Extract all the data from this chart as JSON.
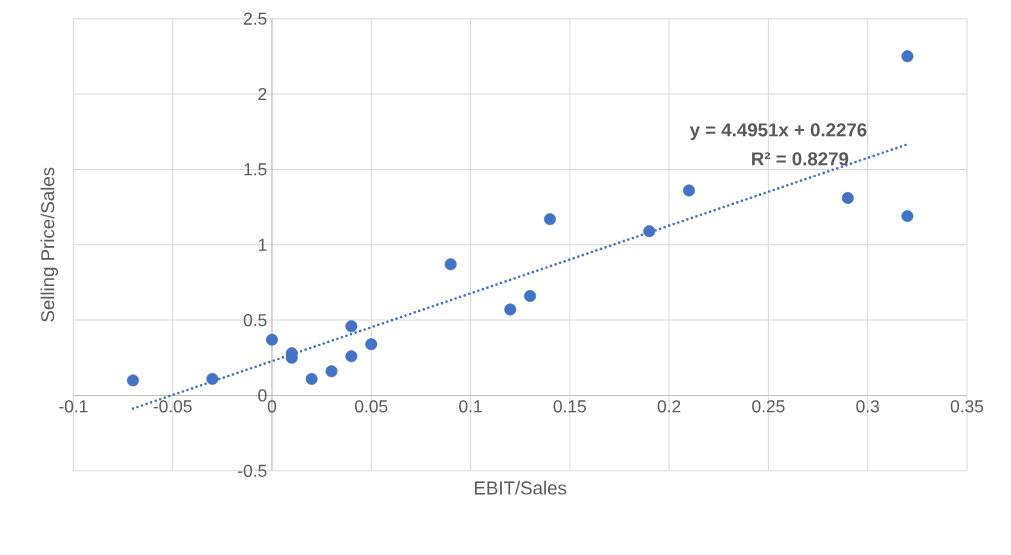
{
  "chart_data": {
    "type": "scatter",
    "xlabel": "EBIT/Sales",
    "ylabel": "Selling Price/Sales",
    "xlim": [
      -0.1,
      0.35
    ],
    "ylim": [
      -0.5,
      2.5
    ],
    "xticks": [
      -0.1,
      -0.05,
      0,
      0.05,
      0.1,
      0.15,
      0.2,
      0.25,
      0.3,
      0.35
    ],
    "yticks": [
      -0.5,
      0,
      0.5,
      1,
      1.5,
      2,
      2.5
    ],
    "grid": true,
    "marker": "circle",
    "series": [
      {
        "color": "#4472c4",
        "x": [
          -0.07,
          -0.03,
          0,
          0.01,
          0.01,
          0.02,
          0.03,
          0.04,
          0.04,
          0.05,
          0.09,
          0.12,
          0.13,
          0.14,
          0.19,
          0.21,
          0.29,
          0.32,
          0.32
        ],
        "values": [
          0.1,
          0.11,
          0.37,
          0.28,
          0.25,
          0.11,
          0.16,
          0.46,
          0.26,
          0.34,
          0.87,
          0.57,
          0.66,
          1.17,
          1.09,
          1.36,
          1.31,
          2.25,
          1.19
        ]
      },
      {
        "type": "line",
        "color": "#4472c4",
        "line_style": "dotted",
        "marker": "none",
        "x": [
          -0.07,
          0.32
        ],
        "values": [
          -0.087,
          1.666
        ]
      }
    ],
    "annotations": [
      "y = 4.4951x + 0.2276",
      "R² = 0.8279"
    ]
  }
}
